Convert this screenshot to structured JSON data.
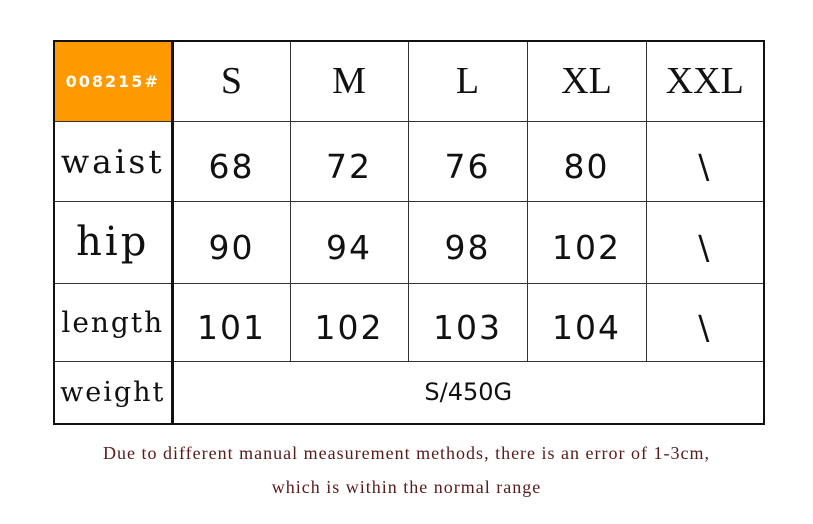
{
  "code": "008215#",
  "brand_color": "#ff9900",
  "sizes": [
    "S",
    "M",
    "L",
    "XL",
    "XXL"
  ],
  "rows": [
    {
      "label": "waist",
      "values": [
        "68",
        "72",
        "76",
        "80",
        "\\"
      ]
    },
    {
      "label": "hip",
      "values": [
        "90",
        "94",
        "98",
        "102",
        "\\"
      ]
    },
    {
      "label": "length",
      "values": [
        "101",
        "102",
        "103",
        "104",
        "\\"
      ]
    }
  ],
  "weight": {
    "label": "weight",
    "value": "S/450G"
  },
  "note": {
    "line1": "Due to different manual measurement methods, there is an error of 1-3cm,",
    "line2": "which is within the normal range"
  }
}
